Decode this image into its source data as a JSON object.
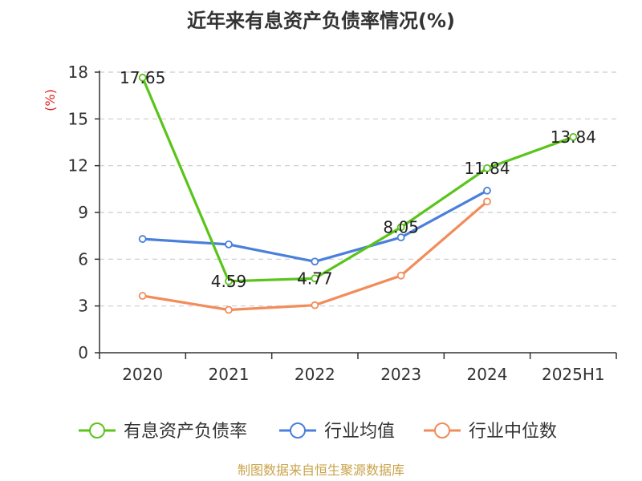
{
  "chart_data": {
    "type": "line",
    "title": "近年来有息资产负债率情况(%)",
    "ylabel": "(%)",
    "xlabel": "",
    "ylim": [
      0,
      18
    ],
    "yticks": [
      0,
      3,
      6,
      9,
      12,
      15,
      18
    ],
    "grid": true,
    "legend_position": "bottom",
    "categories": [
      "2020",
      "2021",
      "2022",
      "2023",
      "2024",
      "2025H1"
    ],
    "series": [
      {
        "name": "有息资产负债率",
        "color": "#5ac41a",
        "values": [
          17.65,
          4.59,
          4.77,
          8.05,
          11.84,
          13.84
        ],
        "data_labels": [
          "17.65",
          "4.59",
          "4.77",
          "8.05",
          "11.84",
          "13.84"
        ]
      },
      {
        "name": "行业均值",
        "color": "#4a7fdc",
        "values": [
          7.3,
          6.95,
          5.85,
          7.4,
          10.4,
          null
        ]
      },
      {
        "name": "行业中位数",
        "color": "#f28c5a",
        "values": [
          3.65,
          2.75,
          3.05,
          4.95,
          9.7,
          null
        ]
      }
    ]
  },
  "footer": "制图数据来自恒生聚源数据库"
}
